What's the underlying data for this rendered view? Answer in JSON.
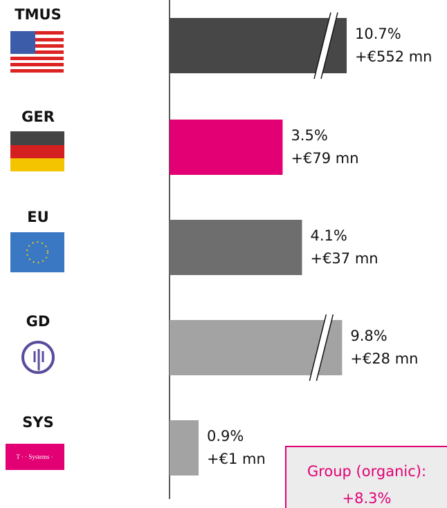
{
  "chart_data": {
    "type": "bar",
    "orientation": "horizontal",
    "categories": [
      "TMUS",
      "GER",
      "EU",
      "GD",
      "SYS"
    ],
    "values": [
      10.7,
      3.5,
      4.1,
      9.8,
      0.9
    ],
    "value_labels": [
      "10.7%",
      "3.5%",
      "4.1%",
      "9.8%",
      "0.9%"
    ],
    "amount_labels": [
      "+€552 mn",
      "+€79 mn",
      "+€37 mn",
      "+€28 mn",
      "+€1 mn"
    ],
    "colors": [
      "#474747",
      "#e20074",
      "#6e6e6e",
      "#a3a3a3",
      "#a3a3a3"
    ],
    "annotation": [
      "Group (organic):",
      "+8.3%"
    ],
    "logo_text": "T · · Systems ·"
  }
}
